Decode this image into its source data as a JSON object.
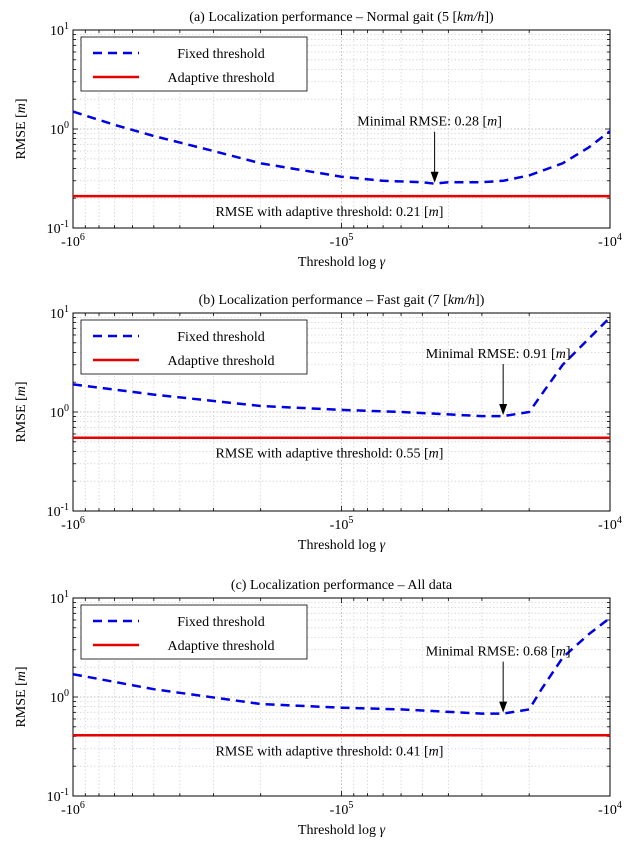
{
  "chart_data": [
    {
      "type": "line",
      "title": "(a) Localization performance – Normal gait (5 [km/h])",
      "xlabel": "Threshold log γ",
      "ylabel": "RMSE [m]",
      "xscale": "log",
      "yscale": "log",
      "xlim": [
        -1000000,
        -10000
      ],
      "ylim": [
        0.1,
        10
      ],
      "xticks": [
        "-10^6",
        "-10^5",
        "-10^4"
      ],
      "yticks": [
        "10^-1",
        "10^0",
        "10^1"
      ],
      "grid": true,
      "legend": "top-left",
      "series": [
        {
          "name": "Fixed threshold",
          "style": "dashed",
          "color": "#0000e6",
          "x": [
            -1000000,
            -700000,
            -500000,
            -300000,
            -200000,
            -100000,
            -70000,
            -50000,
            -45000,
            -40000,
            -30000,
            -25000,
            -20000,
            -15000,
            -12000,
            -10000
          ],
          "y": [
            1.5,
            1.1,
            0.85,
            0.6,
            0.45,
            0.33,
            0.3,
            0.29,
            0.28,
            0.29,
            0.29,
            0.3,
            0.34,
            0.45,
            0.65,
            0.95
          ]
        },
        {
          "name": "Adaptive threshold",
          "style": "solid",
          "color": "#e60000",
          "x": [
            -1000000,
            -10000
          ],
          "y": [
            0.21,
            0.21
          ]
        }
      ],
      "annotations": {
        "minimal": "Minimal RMSE: 0.28 [m]",
        "minimal_x": -45000,
        "minimal_y": 0.28,
        "adaptive": "RMSE with adaptive threshold: 0.21 [m]"
      }
    },
    {
      "type": "line",
      "title": "(b) Localization performance – Fast gait (7 [km/h])",
      "xlabel": "Threshold log γ",
      "ylabel": "RMSE [m]",
      "xscale": "log",
      "yscale": "log",
      "xlim": [
        -1000000,
        -10000
      ],
      "ylim": [
        0.1,
        10
      ],
      "xticks": [
        "-10^6",
        "-10^5",
        "-10^4"
      ],
      "yticks": [
        "10^-1",
        "10^0",
        "10^1"
      ],
      "grid": true,
      "legend": "top-left",
      "series": [
        {
          "name": "Fixed threshold",
          "style": "dashed",
          "color": "#0000e6",
          "x": [
            -1000000,
            -500000,
            -200000,
            -100000,
            -60000,
            -30000,
            -25000,
            -20000,
            -18000,
            -15000,
            -12000,
            -10000
          ],
          "y": [
            1.9,
            1.5,
            1.15,
            1.05,
            1.0,
            0.91,
            0.91,
            1.0,
            1.5,
            3.0,
            5.5,
            9.0
          ]
        },
        {
          "name": "Adaptive threshold",
          "style": "solid",
          "color": "#e60000",
          "x": [
            -1000000,
            -10000
          ],
          "y": [
            0.55,
            0.55
          ]
        }
      ],
      "annotations": {
        "minimal": "Minimal RMSE: 0.91 [m]",
        "minimal_x": -25000,
        "minimal_y": 0.91,
        "adaptive": "RMSE with adaptive threshold: 0.55 [m]"
      }
    },
    {
      "type": "line",
      "title": "(c) Localization performance – All data",
      "xlabel": "Threshold log γ",
      "ylabel": "RMSE [m]",
      "xscale": "log",
      "yscale": "log",
      "xlim": [
        -1000000,
        -10000
      ],
      "ylim": [
        0.1,
        10
      ],
      "xticks": [
        "-10^6",
        "-10^5",
        "-10^4"
      ],
      "yticks": [
        "10^-1",
        "10^0",
        "10^1"
      ],
      "grid": true,
      "legend": "top-left",
      "series": [
        {
          "name": "Fixed threshold",
          "style": "dashed",
          "color": "#0000e6",
          "x": [
            -1000000,
            -500000,
            -200000,
            -100000,
            -60000,
            -30000,
            -25000,
            -20000,
            -18000,
            -15000,
            -12000,
            -10000
          ],
          "y": [
            1.7,
            1.2,
            0.85,
            0.78,
            0.75,
            0.68,
            0.68,
            0.75,
            1.2,
            2.5,
            4.3,
            6.3
          ]
        },
        {
          "name": "Adaptive threshold",
          "style": "solid",
          "color": "#e60000",
          "x": [
            -1000000,
            -10000
          ],
          "y": [
            0.41,
            0.41
          ]
        }
      ],
      "annotations": {
        "minimal": "Minimal RMSE: 0.68 [m]",
        "minimal_x": -25000,
        "minimal_y": 0.68,
        "adaptive": "RMSE with adaptive threshold: 0.41 [m]"
      }
    }
  ]
}
